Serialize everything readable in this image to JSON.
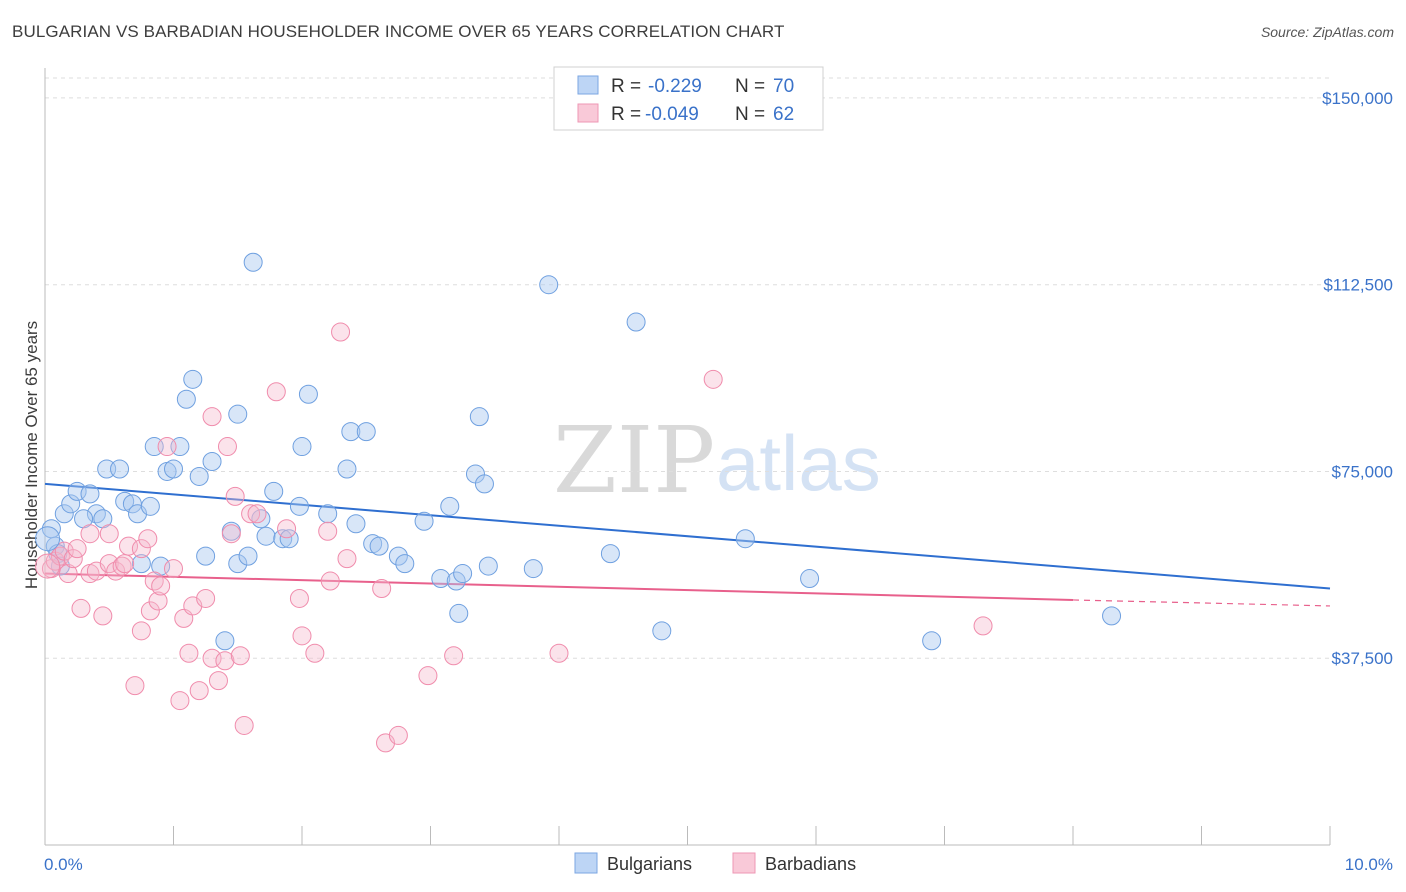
{
  "header": {
    "title": "BULGARIAN VS BARBADIAN HOUSEHOLDER INCOME OVER 65 YEARS CORRELATION CHART",
    "source": "Source: ZipAtlas.com"
  },
  "watermark": {
    "zip": "ZIP",
    "atlas": "atlas"
  },
  "legend": {
    "r_label": "R =",
    "n_label": "N =",
    "rows": [
      {
        "r": "-0.229",
        "n": "70",
        "color": "#a9c8f0"
      },
      {
        "r": "-0.049",
        "n": "62",
        "color": "#f5b8cc"
      }
    ]
  },
  "bottom_legend": [
    "Bulgarians",
    "Barbadians"
  ],
  "chart_data": {
    "type": "scatter",
    "title": "BULGARIAN VS BARBADIAN HOUSEHOLDER INCOME OVER 65 YEARS CORRELATION CHART",
    "xlabel": "",
    "ylabel": "Householder Income Over 65 years",
    "xlim": [
      0,
      10
    ],
    "ylim": [
      0,
      154000
    ],
    "x_tick_labels": [
      "0.0%",
      "10.0%"
    ],
    "y_ticks": [
      37500,
      75000,
      112500,
      150000
    ],
    "y_tick_labels": [
      "$37,500",
      "$75,000",
      "$112,500",
      "$150,000"
    ],
    "grid": true,
    "series": [
      {
        "name": "Bulgarians",
        "color": "#6fa0e0",
        "line_color": "#2f6fd0",
        "trend": [
          [
            0,
            72500
          ],
          [
            10,
            51500
          ]
        ],
        "points": [
          [
            0.05,
            63500
          ],
          [
            0.08,
            60000
          ],
          [
            0.1,
            58500
          ],
          [
            0.15,
            66500
          ],
          [
            0.2,
            68500
          ],
          [
            0.25,
            71000
          ],
          [
            0.35,
            70500
          ],
          [
            0.4,
            66500
          ],
          [
            0.45,
            65500
          ],
          [
            0.48,
            75500
          ],
          [
            0.58,
            75500
          ],
          [
            0.62,
            69000
          ],
          [
            0.68,
            68500
          ],
          [
            0.72,
            66500
          ],
          [
            0.75,
            56500
          ],
          [
            0.82,
            68000
          ],
          [
            0.85,
            80000
          ],
          [
            0.9,
            56000
          ],
          [
            0.95,
            75000
          ],
          [
            1.0,
            75500
          ],
          [
            1.05,
            80000
          ],
          [
            1.1,
            89500
          ],
          [
            1.15,
            93500
          ],
          [
            1.2,
            74000
          ],
          [
            1.25,
            58000
          ],
          [
            1.3,
            77000
          ],
          [
            1.4,
            41000
          ],
          [
            1.45,
            63000
          ],
          [
            1.5,
            56500
          ],
          [
            1.5,
            86500
          ],
          [
            1.58,
            58000
          ],
          [
            1.62,
            117000
          ],
          [
            1.68,
            65500
          ],
          [
            1.72,
            62000
          ],
          [
            1.78,
            71000
          ],
          [
            1.85,
            61500
          ],
          [
            1.9,
            61500
          ],
          [
            1.98,
            68000
          ],
          [
            2.0,
            80000
          ],
          [
            2.05,
            90500
          ],
          [
            2.2,
            66500
          ],
          [
            2.35,
            75500
          ],
          [
            2.38,
            83000
          ],
          [
            2.42,
            64500
          ],
          [
            2.5,
            83000
          ],
          [
            2.55,
            60500
          ],
          [
            2.6,
            60000
          ],
          [
            2.75,
            58000
          ],
          [
            2.8,
            56500
          ],
          [
            2.95,
            65000
          ],
          [
            3.08,
            53500
          ],
          [
            3.15,
            68000
          ],
          [
            3.2,
            53000
          ],
          [
            3.22,
            46500
          ],
          [
            3.25,
            54500
          ],
          [
            3.35,
            74500
          ],
          [
            3.38,
            86000
          ],
          [
            3.42,
            72500
          ],
          [
            3.45,
            56000
          ],
          [
            3.8,
            55500
          ],
          [
            3.92,
            112500
          ],
          [
            4.4,
            58500
          ],
          [
            4.6,
            105000
          ],
          [
            4.8,
            43000
          ],
          [
            5.45,
            61500
          ],
          [
            5.95,
            53500
          ],
          [
            6.9,
            41000
          ],
          [
            8.3,
            46000
          ],
          [
            0.12,
            56000
          ],
          [
            0.3,
            65500
          ]
        ]
      },
      {
        "name": "Barbadians",
        "color": "#f08cac",
        "line_color": "#e8608c",
        "trend": [
          [
            0,
            54500
          ],
          [
            8.0,
            49200
          ]
        ],
        "trend_dashed": [
          [
            8.0,
            49200
          ],
          [
            10,
            48000
          ]
        ],
        "points": [
          [
            0.05,
            55500
          ],
          [
            0.08,
            57000
          ],
          [
            0.12,
            58000
          ],
          [
            0.15,
            59000
          ],
          [
            0.18,
            54500
          ],
          [
            0.22,
            57500
          ],
          [
            0.25,
            59500
          ],
          [
            0.28,
            47500
          ],
          [
            0.35,
            54500
          ],
          [
            0.35,
            62500
          ],
          [
            0.4,
            55000
          ],
          [
            0.45,
            46000
          ],
          [
            0.5,
            56500
          ],
          [
            0.5,
            62500
          ],
          [
            0.55,
            55000
          ],
          [
            0.6,
            56000
          ],
          [
            0.62,
            56500
          ],
          [
            0.65,
            60000
          ],
          [
            0.7,
            32000
          ],
          [
            0.75,
            59500
          ],
          [
            0.75,
            43000
          ],
          [
            0.8,
            61500
          ],
          [
            0.82,
            47000
          ],
          [
            0.85,
            53000
          ],
          [
            0.88,
            49000
          ],
          [
            0.9,
            52000
          ],
          [
            0.95,
            80000
          ],
          [
            1.0,
            55500
          ],
          [
            1.05,
            29000
          ],
          [
            1.08,
            45500
          ],
          [
            1.12,
            38500
          ],
          [
            1.15,
            48000
          ],
          [
            1.2,
            31000
          ],
          [
            1.25,
            49500
          ],
          [
            1.3,
            37500
          ],
          [
            1.3,
            86000
          ],
          [
            1.35,
            33000
          ],
          [
            1.4,
            37000
          ],
          [
            1.42,
            80000
          ],
          [
            1.45,
            62500
          ],
          [
            1.48,
            70000
          ],
          [
            1.52,
            38000
          ],
          [
            1.55,
            24000
          ],
          [
            1.6,
            66500
          ],
          [
            1.65,
            66500
          ],
          [
            1.8,
            91000
          ],
          [
            1.88,
            63500
          ],
          [
            1.98,
            49500
          ],
          [
            2.0,
            42000
          ],
          [
            2.1,
            38500
          ],
          [
            2.2,
            63000
          ],
          [
            2.22,
            53000
          ],
          [
            2.3,
            103000
          ],
          [
            2.35,
            57500
          ],
          [
            2.62,
            51500
          ],
          [
            2.65,
            20500
          ],
          [
            2.75,
            22000
          ],
          [
            2.98,
            34000
          ],
          [
            3.18,
            38000
          ],
          [
            4.0,
            38500
          ],
          [
            5.2,
            93500
          ],
          [
            7.3,
            44000
          ]
        ]
      }
    ]
  }
}
